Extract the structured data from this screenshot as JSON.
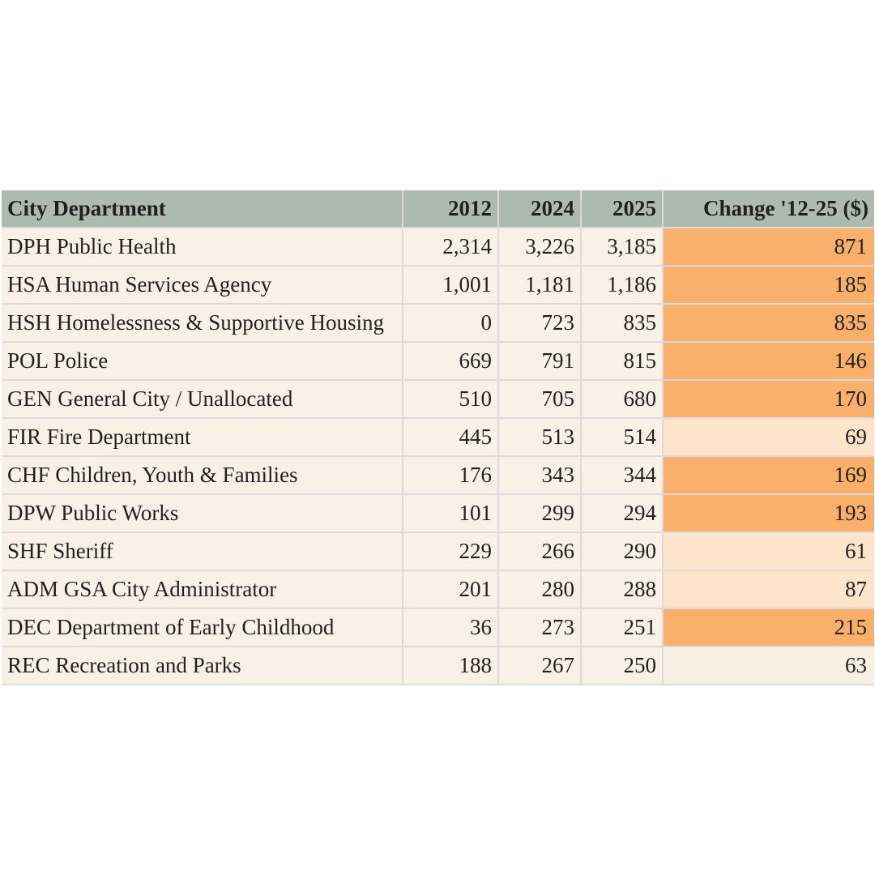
{
  "colors": {
    "page_background": "#ffffff",
    "header_background": "#adbbaf",
    "row_background": "#f9f1e6",
    "heat_strong": "#fab06a",
    "heat_light": "#fde5cb",
    "heat_none": "#f8f0e3",
    "text": "#231f20",
    "divider": "#ddd9dc"
  },
  "chart_data": {
    "type": "table",
    "title": "",
    "columns": [
      "City Department",
      "2012",
      "2024",
      "2025",
      "Change '12-25 ($)"
    ],
    "rows": [
      {
        "department": "DPH Public Health",
        "y2012": "2,314",
        "y2024": "3,226",
        "y2025": "3,185",
        "change": "871",
        "change_heat": "strong"
      },
      {
        "department": "HSA Human Services Agency",
        "y2012": "1,001",
        "y2024": "1,181",
        "y2025": "1,186",
        "change": "185",
        "change_heat": "strong"
      },
      {
        "department": "HSH Homelessness & Supportive Housing",
        "y2012": "0",
        "y2024": "723",
        "y2025": "835",
        "change": "835",
        "change_heat": "strong"
      },
      {
        "department": "POL Police",
        "y2012": "669",
        "y2024": "791",
        "y2025": "815",
        "change": "146",
        "change_heat": "strong"
      },
      {
        "department": "GEN General City / Unallocated",
        "y2012": "510",
        "y2024": "705",
        "y2025": "680",
        "change": "170",
        "change_heat": "strong"
      },
      {
        "department": "FIR Fire Department",
        "y2012": "445",
        "y2024": "513",
        "y2025": "514",
        "change": "69",
        "change_heat": "light"
      },
      {
        "department": "CHF Children, Youth & Families",
        "y2012": "176",
        "y2024": "343",
        "y2025": "344",
        "change": "169",
        "change_heat": "strong"
      },
      {
        "department": "DPW Public Works",
        "y2012": "101",
        "y2024": "299",
        "y2025": "294",
        "change": "193",
        "change_heat": "strong"
      },
      {
        "department": "SHF Sheriff",
        "y2012": "229",
        "y2024": "266",
        "y2025": "290",
        "change": "61",
        "change_heat": "light"
      },
      {
        "department": "ADM GSA City Administrator",
        "y2012": "201",
        "y2024": "280",
        "y2025": "288",
        "change": "87",
        "change_heat": "light"
      },
      {
        "department": "DEC Department of Early Childhood",
        "y2012": "36",
        "y2024": "273",
        "y2025": "251",
        "change": "215",
        "change_heat": "strong"
      },
      {
        "department": "REC Recreation and Parks",
        "y2012": "188",
        "y2024": "267",
        "y2025": "250",
        "change": "63",
        "change_heat": "none"
      }
    ]
  }
}
